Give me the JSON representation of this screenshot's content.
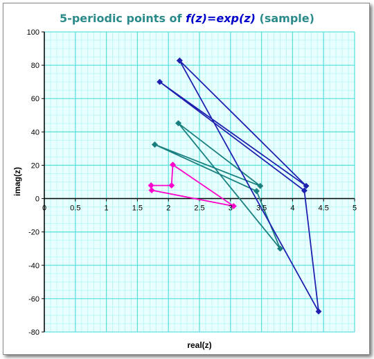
{
  "chart_data": {
    "type": "line",
    "title": {
      "prefix": "5-periodic points of ",
      "func": "f(z)=exp(z)",
      "suffix": " (sample)"
    },
    "xlabel": "real(z)",
    "ylabel": "imag(z)",
    "xlim": [
      0,
      5
    ],
    "ylim": [
      -80,
      100
    ],
    "xticks": [
      "0",
      "0.5",
      "1",
      "1.5",
      "2",
      "2.5",
      "3",
      "3.5",
      "4",
      "4.5",
      "5"
    ],
    "yticks": [
      "100",
      "80",
      "60",
      "40",
      "20",
      "0",
      "-20",
      "-40",
      "-60",
      "-80"
    ],
    "grid": true,
    "colors": {
      "plot_bg": "#e9ffff",
      "minor_grid": "#bff5f5",
      "major_grid": "#5fe0e0",
      "title": "#2b8a8a",
      "title_func": "#0000cc"
    },
    "series": [
      {
        "color": "#ff00cc",
        "points": [
          [
            1.72,
            7.9
          ],
          [
            2.05,
            7.9
          ],
          [
            2.07,
            20.3
          ],
          [
            3.05,
            -4.5
          ],
          [
            1.73,
            5.0
          ],
          [
            1.72,
            7.9
          ]
        ]
      },
      {
        "color": "#1a7f7f",
        "points": [
          [
            1.78,
            32.4
          ],
          [
            3.48,
            7.6
          ],
          [
            2.16,
            45.2
          ],
          [
            3.8,
            -30.0
          ],
          [
            3.42,
            4.5
          ],
          [
            1.78,
            32.4
          ]
        ]
      },
      {
        "color": "#2020b0",
        "points": [
          [
            2.18,
            82.8
          ],
          [
            4.22,
            7.6
          ],
          [
            1.86,
            70.0
          ],
          [
            4.19,
            4.8
          ],
          [
            4.42,
            -67.7
          ],
          [
            2.18,
            82.8
          ]
        ]
      }
    ]
  }
}
